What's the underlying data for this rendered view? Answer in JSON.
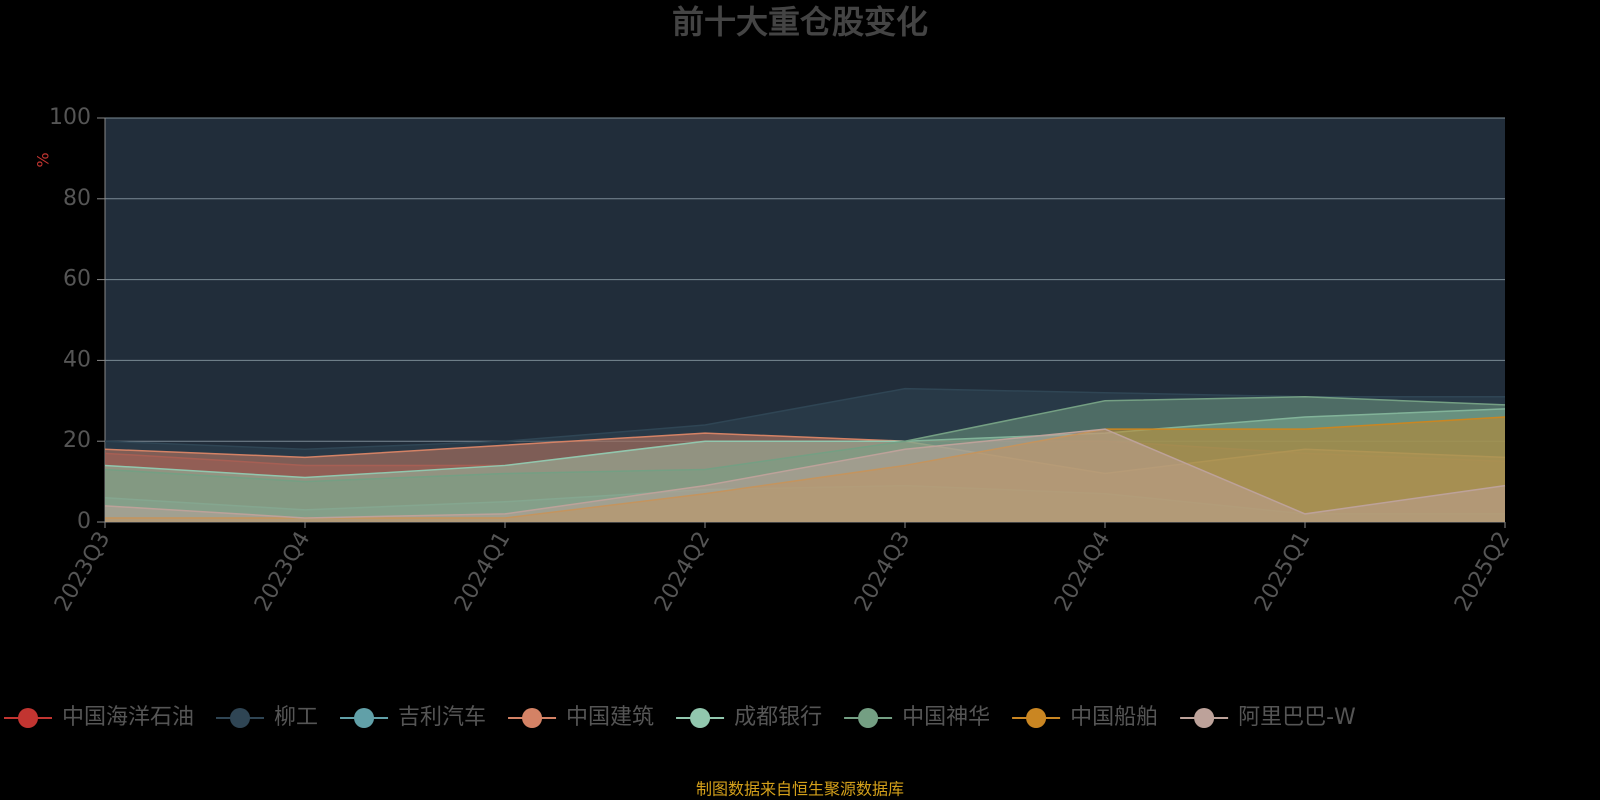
{
  "chart_data": {
    "type": "area",
    "title": "前十大重仓股变化",
    "y_label": "%",
    "categories": [
      "2023Q3",
      "2023Q4",
      "2024Q1",
      "2024Q2",
      "2024Q3",
      "2024Q4",
      "2025Q1",
      "2025Q2"
    ],
    "ylim": [
      0,
      100
    ],
    "yticks": [
      0,
      20,
      40,
      60,
      80,
      100
    ],
    "grid": true,
    "series": [
      {
        "name": "中国海洋石油",
        "color": "#c23531",
        "values": [
          17,
          14,
          14,
          20,
          20,
          20,
          17,
          15
        ]
      },
      {
        "name": "柳工",
        "color": "#2f4554",
        "values": [
          20,
          18,
          20,
          24,
          33,
          32,
          31,
          31
        ]
      },
      {
        "name": "吉利汽车",
        "color": "#61a0a8",
        "values": [
          6,
          3,
          5,
          8,
          9,
          7,
          2,
          2
        ]
      },
      {
        "name": "中国建筑",
        "color": "#d48265",
        "values": [
          18,
          16,
          19,
          22,
          20,
          12,
          18,
          16
        ]
      },
      {
        "name": "成都银行",
        "color": "#91c7ae",
        "values": [
          14,
          11,
          14,
          20,
          20,
          22,
          26,
          28
        ]
      },
      {
        "name": "中国神华",
        "color": "#749f83",
        "values": [
          13,
          10,
          12,
          13,
          20,
          30,
          31,
          29
        ]
      },
      {
        "name": "中国船舶",
        "color": "#ca8622",
        "values": [
          1,
          1,
          1,
          7,
          14,
          23,
          23,
          26
        ]
      },
      {
        "name": "阿里巴巴-W",
        "color": "#bda29a",
        "values": [
          4,
          1,
          2,
          9,
          18,
          23,
          2,
          9
        ]
      }
    ],
    "source": "制图数据来自恒生聚源数据库"
  }
}
